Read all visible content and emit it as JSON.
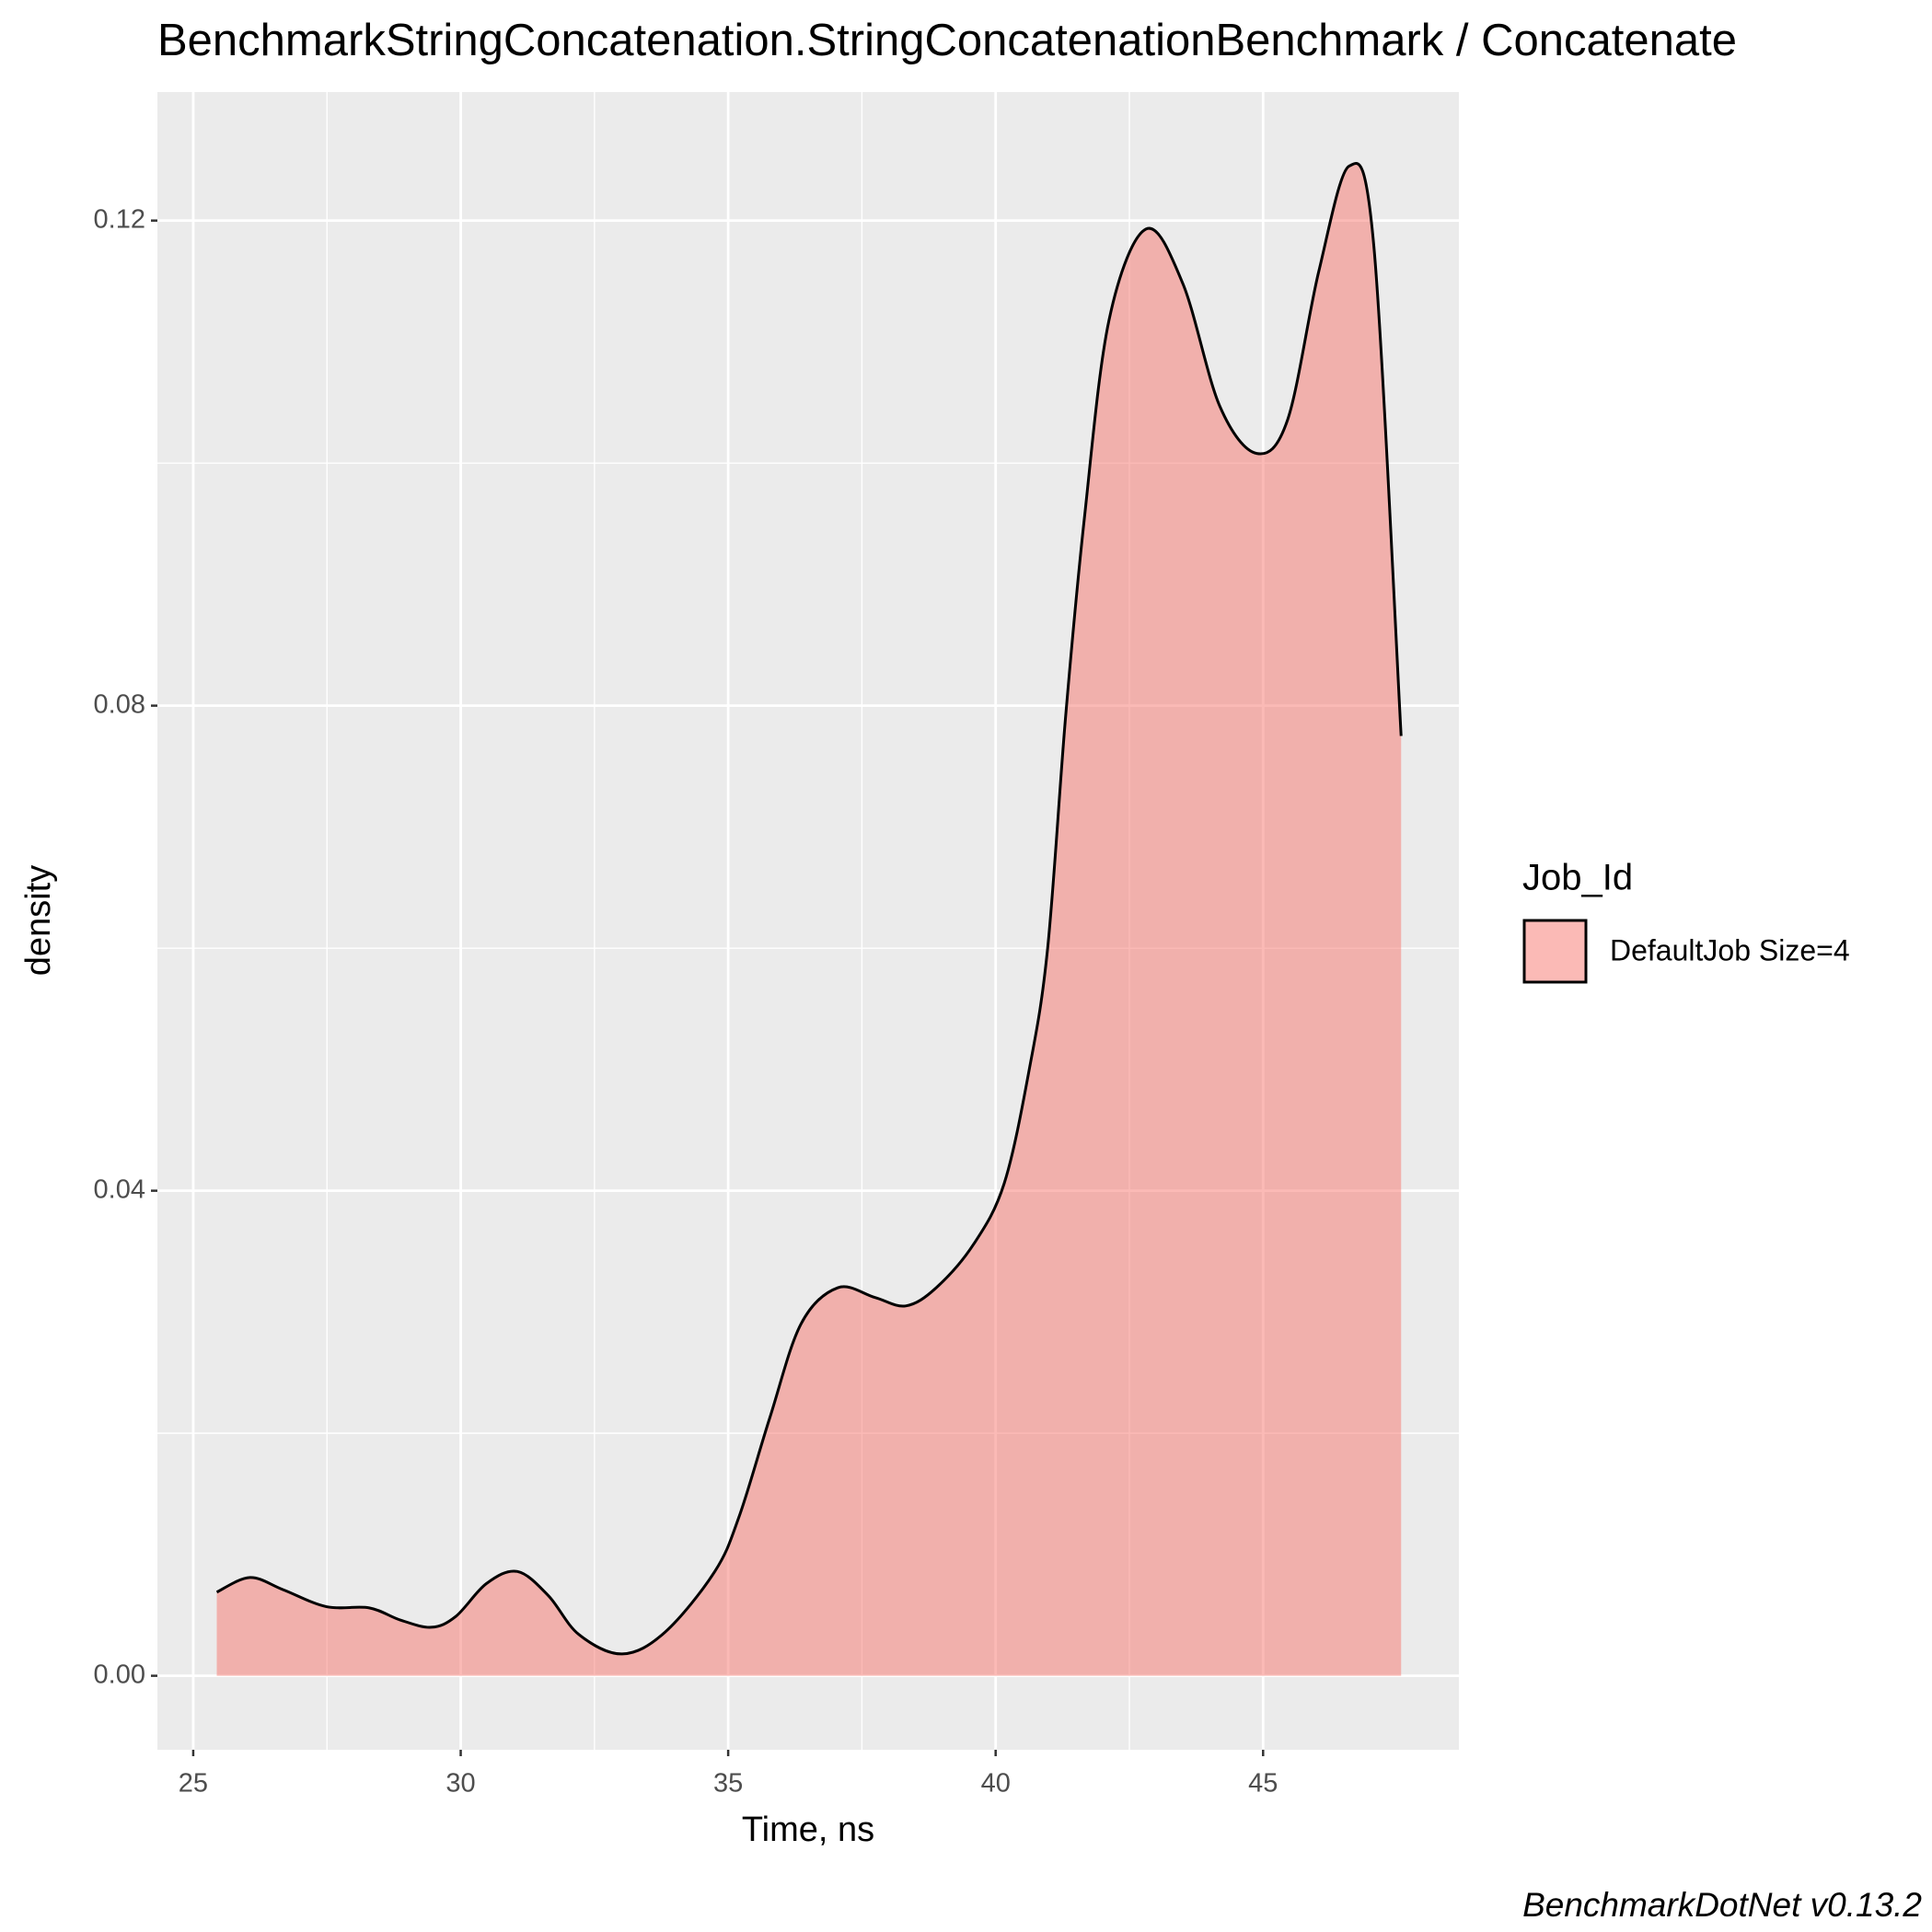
{
  "chart_data": {
    "type": "density",
    "title": "BenchmarkStringConcatenation.StringConcatenationBenchmark / Concatenate",
    "x_label": "Time, ns",
    "y_label": "density",
    "caption": "BenchmarkDotNet v0.13.2",
    "legend_title": "Job_Id",
    "legend_position": "right",
    "x": [
      25.44,
      26.06,
      26.68,
      27.49,
      28.29,
      28.87,
      29.45,
      29.91,
      30.48,
      31.06,
      31.64,
      32.21,
      33.02,
      33.82,
      34.75,
      35.21,
      35.78,
      36.36,
      37.05,
      37.74,
      38.32,
      38.89,
      39.59,
      40.16,
      40.62,
      40.97,
      41.31,
      41.66,
      42.12,
      42.81,
      43.5,
      44.19,
      44.88,
      45.46,
      46.04,
      46.61,
      47.07,
      47.58
    ],
    "series": [
      {
        "name": "DefaultJob Size=4",
        "color": "#F8766D",
        "fill_opacity": 0.5,
        "values": [
          0.0069,
          0.0081,
          0.0071,
          0.0057,
          0.0056,
          0.0046,
          0.004,
          0.0049,
          0.0076,
          0.0086,
          0.0066,
          0.0034,
          0.0018,
          0.0036,
          0.0086,
          0.0132,
          0.0213,
          0.029,
          0.032,
          0.0312,
          0.0305,
          0.032,
          0.0356,
          0.0406,
          0.0498,
          0.0599,
          0.0792,
          0.0955,
          0.1118,
          0.1193,
          0.1148,
          0.1047,
          0.1008,
          0.1036,
          0.1158,
          0.1245,
          0.1179,
          0.0775
        ]
      }
    ],
    "xlim": [
      24.33,
      48.66
    ],
    "ylim": [
      -0.0061,
      0.1306
    ],
    "xticks": [
      25,
      30,
      35,
      40,
      45
    ],
    "yticks": [
      {
        "value": 0,
        "label": "0.00"
      },
      {
        "value": 0.04,
        "label": "0.04"
      },
      {
        "value": 0.08,
        "label": "0.08"
      },
      {
        "value": 0.12,
        "label": "0.12"
      }
    ],
    "grid": true
  }
}
